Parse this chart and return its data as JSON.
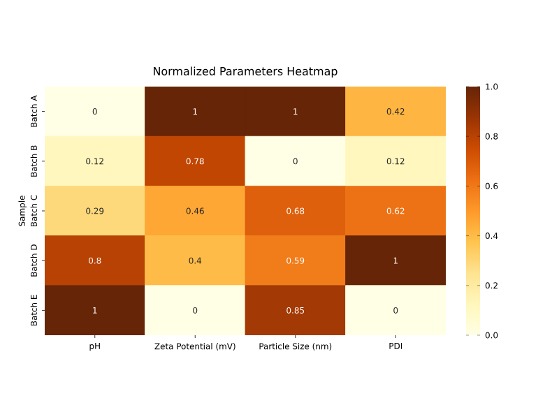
{
  "chart_data": {
    "type": "heatmap",
    "title": "Normalized Parameters Heatmap",
    "ylabel": "Sample",
    "categories": [
      "pH",
      "Zeta Potential (mV)",
      "Particle Size (nm)",
      "PDI"
    ],
    "y_categories": [
      "Batch A",
      "Batch B",
      "Batch C",
      "Batch D",
      "Batch E"
    ],
    "cells": [
      [
        0,
        1,
        1,
        0.42
      ],
      [
        0.12,
        0.78,
        0,
        0.12
      ],
      [
        0.29,
        0.46,
        0.68,
        0.62
      ],
      [
        0.8,
        0.4,
        0.59,
        1
      ],
      [
        1,
        0,
        0.85,
        0
      ]
    ],
    "data_labels": true,
    "clim": [
      0,
      1
    ],
    "cticks": [
      {
        "value": 0,
        "label": "0.0"
      },
      {
        "value": 0.2,
        "label": "0.2"
      },
      {
        "value": 0.4,
        "label": "0.4"
      },
      {
        "value": 0.6,
        "label": "0.6"
      },
      {
        "value": 0.8,
        "label": "0.8"
      },
      {
        "value": 1,
        "label": "1.0"
      }
    ]
  }
}
